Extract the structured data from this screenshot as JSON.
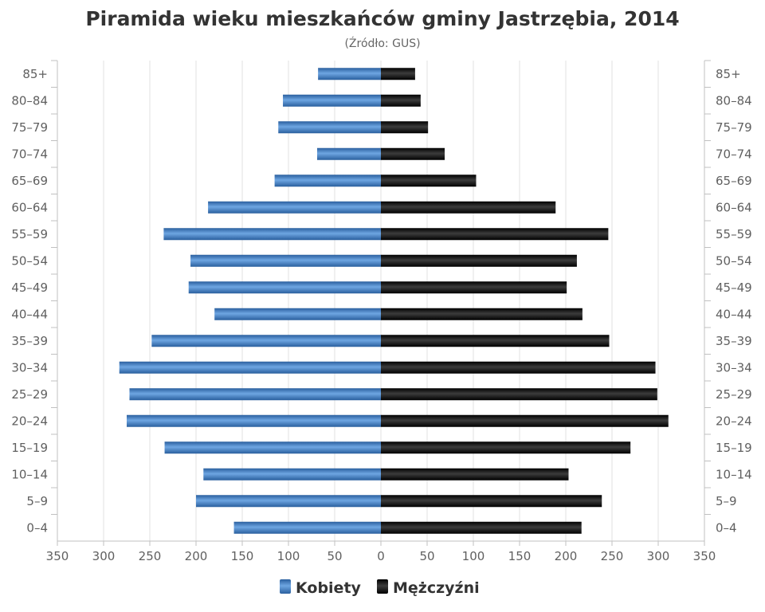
{
  "colors": {
    "kobiety": "#3d7dc4",
    "mezczyzni": "#151515",
    "grid": "#e0e0e0",
    "axis": "#c0c0c0",
    "text": "#606060"
  },
  "chart_data": {
    "type": "bar",
    "orientation": "horizontal-pyramid",
    "title": "Piramida wieku mieszkańców gminy Jastrzębia, 2014",
    "subtitle": "(Źródło: GUS)",
    "categories": [
      "85+",
      "80–84",
      "75–79",
      "70–74",
      "65–69",
      "60–64",
      "55–59",
      "50–54",
      "45–49",
      "40–44",
      "35–39",
      "30–34",
      "25–29",
      "20–24",
      "15–19",
      "10–14",
      "5–9",
      "0–4"
    ],
    "series": [
      {
        "name": "Kobiety",
        "side": "left",
        "values": [
          68,
          106,
          111,
          69,
          115,
          187,
          235,
          206,
          208,
          180,
          248,
          283,
          272,
          275,
          234,
          192,
          200,
          159
        ]
      },
      {
        "name": "Mężczyźni",
        "side": "right",
        "values": [
          37,
          43,
          51,
          69,
          103,
          189,
          246,
          212,
          201,
          218,
          247,
          297,
          299,
          311,
          270,
          203,
          239,
          217
        ]
      }
    ],
    "xlim": [
      -350,
      350
    ],
    "x_ticks": [
      350,
      300,
      250,
      200,
      150,
      100,
      50,
      0,
      50,
      100,
      150,
      200,
      250,
      300,
      350
    ],
    "grid": true,
    "legend": "bottom-center"
  }
}
